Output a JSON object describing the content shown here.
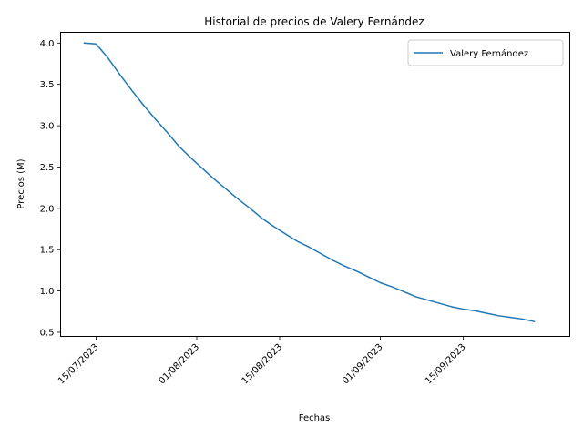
{
  "chart_data": {
    "type": "line",
    "title": "Historial de precios de Valery Fernández",
    "xlabel": "Fechas",
    "ylabel": "Precios (M)",
    "xlim": [
      "2023-07-09",
      "2023-10-03"
    ],
    "ylim": [
      0.45,
      4.13
    ],
    "x_ticks": [
      "15/07/2023",
      "01/08/2023",
      "15/08/2023",
      "01/09/2023",
      "15/09/2023"
    ],
    "y_ticks": [
      "0.5",
      "1.0",
      "1.5",
      "2.0",
      "2.5",
      "3.0",
      "3.5",
      "4.0"
    ],
    "grid": false,
    "legend_position": "upper right",
    "color": "#1f77b4",
    "series": [
      {
        "name": "Valery Fernández",
        "x": [
          "2023-07-13",
          "2023-07-15",
          "2023-07-17",
          "2023-07-19",
          "2023-07-21",
          "2023-07-23",
          "2023-07-25",
          "2023-07-27",
          "2023-07-29",
          "2023-07-31",
          "2023-08-02",
          "2023-08-04",
          "2023-08-06",
          "2023-08-08",
          "2023-08-10",
          "2023-08-12",
          "2023-08-14",
          "2023-08-16",
          "2023-08-18",
          "2023-08-20",
          "2023-08-22",
          "2023-08-24",
          "2023-08-26",
          "2023-08-28",
          "2023-08-30",
          "2023-09-01",
          "2023-09-03",
          "2023-09-05",
          "2023-09-07",
          "2023-09-09",
          "2023-09-11",
          "2023-09-13",
          "2023-09-15",
          "2023-09-17",
          "2023-09-19",
          "2023-09-21",
          "2023-09-23",
          "2023-09-25",
          "2023-09-27"
        ],
        "values": [
          4.0,
          3.99,
          3.82,
          3.62,
          3.43,
          3.25,
          3.08,
          2.92,
          2.75,
          2.61,
          2.48,
          2.35,
          2.23,
          2.11,
          2.0,
          1.88,
          1.78,
          1.69,
          1.6,
          1.53,
          1.45,
          1.37,
          1.3,
          1.24,
          1.17,
          1.1,
          1.05,
          0.99,
          0.93,
          0.89,
          0.85,
          0.81,
          0.78,
          0.76,
          0.73,
          0.7,
          0.68,
          0.66,
          0.63
        ]
      }
    ]
  }
}
